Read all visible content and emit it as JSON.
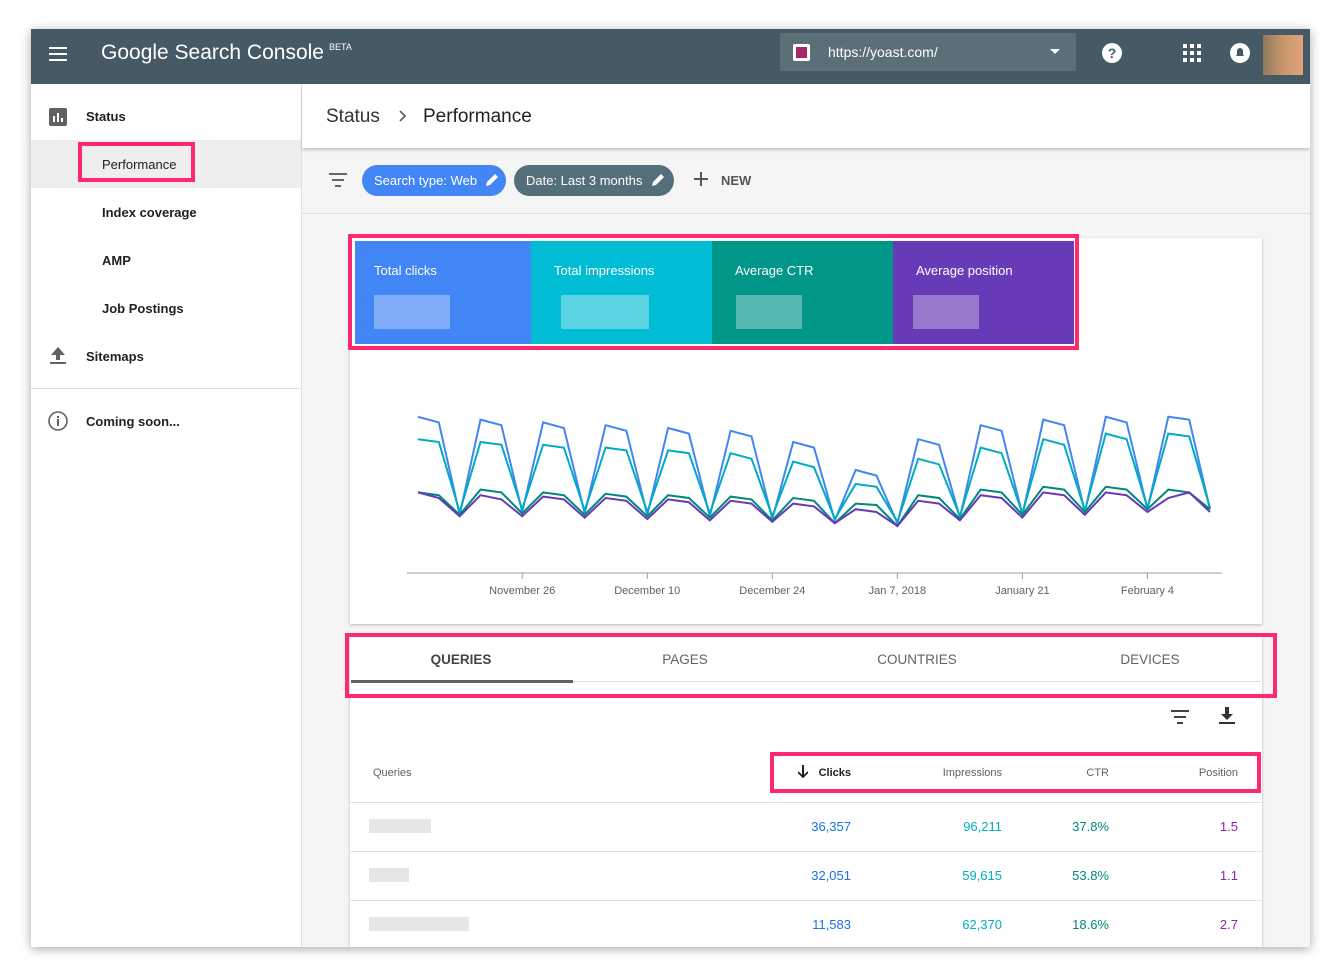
{
  "header": {
    "logo": "Google Search Console",
    "badge": "BETA",
    "property": "https://yoast.com/"
  },
  "sidebar": {
    "items": [
      "Status",
      "Performance",
      "Index coverage",
      "AMP",
      "Job Postings",
      "Sitemaps",
      "Coming soon..."
    ]
  },
  "breadcrumb": [
    "Status",
    "Performance"
  ],
  "filters": {
    "chips": [
      "Search type: Web",
      "Date: Last 3 months"
    ],
    "new": "NEW"
  },
  "chart_data": {
    "type": "line",
    "categories": [
      null,
      null,
      null,
      null,
      null,
      "November 26",
      null,
      null,
      null,
      null,
      null,
      "December 10",
      null,
      null,
      null,
      null,
      null,
      "December 24",
      null,
      null,
      null,
      null,
      null,
      "Jan 7, 2018",
      null,
      null,
      null,
      null,
      null,
      "January 21",
      null,
      null,
      null,
      null,
      null,
      "February 4",
      null,
      null,
      null
    ],
    "ylim": [
      0,
      100
    ],
    "series": [
      {
        "name": "Total clicks",
        "color": "#4285f4",
        "values": [
          88,
          84,
          18,
          86,
          82,
          20,
          84,
          80,
          19,
          82,
          78,
          18,
          80,
          76,
          17,
          78,
          74,
          15,
          70,
          66,
          14,
          50,
          46,
          12,
          72,
          68,
          16,
          82,
          78,
          18,
          86,
          82,
          20,
          88,
          84,
          22,
          88,
          86,
          22
        ]
      },
      {
        "name": "Total impressions",
        "color": "#00acc1",
        "values": [
          72,
          70,
          20,
          70,
          68,
          22,
          68,
          66,
          21,
          66,
          64,
          20,
          64,
          62,
          19,
          62,
          58,
          17,
          56,
          52,
          15,
          40,
          38,
          13,
          58,
          54,
          17,
          66,
          62,
          19,
          72,
          68,
          21,
          76,
          72,
          23,
          76,
          74,
          23
        ]
      },
      {
        "name": "Average CTR",
        "color": "#00897b",
        "values": [
          34,
          32,
          18,
          36,
          34,
          19,
          34,
          32,
          18,
          33,
          31,
          17,
          32,
          30,
          16,
          31,
          29,
          14,
          30,
          28,
          12,
          26,
          25,
          10,
          32,
          30,
          15,
          36,
          34,
          18,
          38,
          36,
          20,
          38,
          36,
          22,
          36,
          34,
          22
        ]
      },
      {
        "name": "Average position",
        "color": "#673ab7",
        "values": [
          34,
          30,
          17,
          32,
          29,
          17,
          31,
          29,
          16,
          30,
          28,
          15,
          29,
          27,
          14,
          28,
          26,
          13,
          26,
          24,
          12,
          22,
          20,
          10,
          28,
          26,
          14,
          32,
          30,
          16,
          34,
          32,
          18,
          34,
          32,
          20,
          30,
          34,
          20
        ]
      }
    ]
  },
  "tabs": [
    "QUERIES",
    "PAGES",
    "COUNTRIES",
    "DEVICES"
  ],
  "table": {
    "columns": [
      "Queries",
      "Clicks",
      "Impressions",
      "CTR",
      "Position"
    ],
    "rows": [
      [
        "36,357",
        "96,211",
        "37.8%",
        "1.5"
      ],
      [
        "32,051",
        "59,615",
        "53.8%",
        "1.1"
      ],
      [
        "11,583",
        "62,370",
        "18.6%",
        "2.7"
      ]
    ]
  }
}
